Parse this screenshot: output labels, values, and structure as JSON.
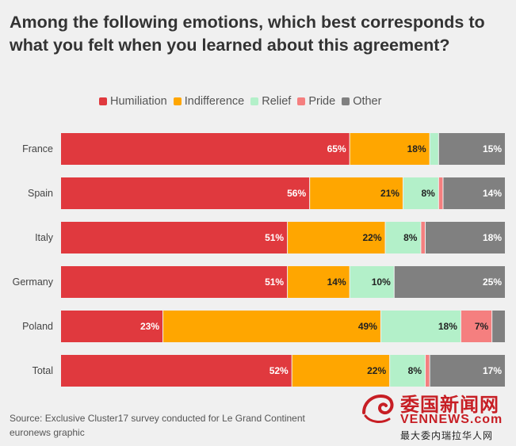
{
  "chart_data": {
    "type": "bar",
    "orientation": "horizontal",
    "stacked": true,
    "title": "Among the following emotions, which best corresponds to what you felt when you learned about this agreement?",
    "categories": [
      "France",
      "Spain",
      "Italy",
      "Germany",
      "Poland",
      "Total"
    ],
    "series": [
      {
        "name": "Humiliation",
        "color": "#e0393e",
        "label_color": "#ffffff",
        "values": [
          65,
          56,
          51,
          51,
          23,
          52
        ]
      },
      {
        "name": "Indifference",
        "color": "#ffa600",
        "label_color": "#222222",
        "values": [
          18,
          21,
          22,
          14,
          49,
          22
        ]
      },
      {
        "name": "Relief",
        "color": "#b3f0c9",
        "label_color": "#222222",
        "values": [
          2,
          8,
          8,
          10,
          18,
          8
        ]
      },
      {
        "name": "Pride",
        "color": "#f57f7f",
        "label_color": "#222222",
        "values": [
          0,
          1,
          1,
          0,
          7,
          1
        ]
      },
      {
        "name": "Other",
        "color": "#808080",
        "label_color": "#ffffff",
        "values": [
          15,
          14,
          18,
          25,
          3,
          17
        ]
      }
    ],
    "label_suffix": "%",
    "label_min": 5,
    "xlim": [
      0,
      100
    ],
    "xlabel": "",
    "ylabel": ""
  },
  "source": "Source: Exclusive Cluster17 survey conducted for Le Grand Continent",
  "credit": "euronews graphic",
  "watermark": {
    "cn": "委国新闻网",
    "en": "VENNEWS.com",
    "sub": "最大委内瑞拉华人网"
  }
}
